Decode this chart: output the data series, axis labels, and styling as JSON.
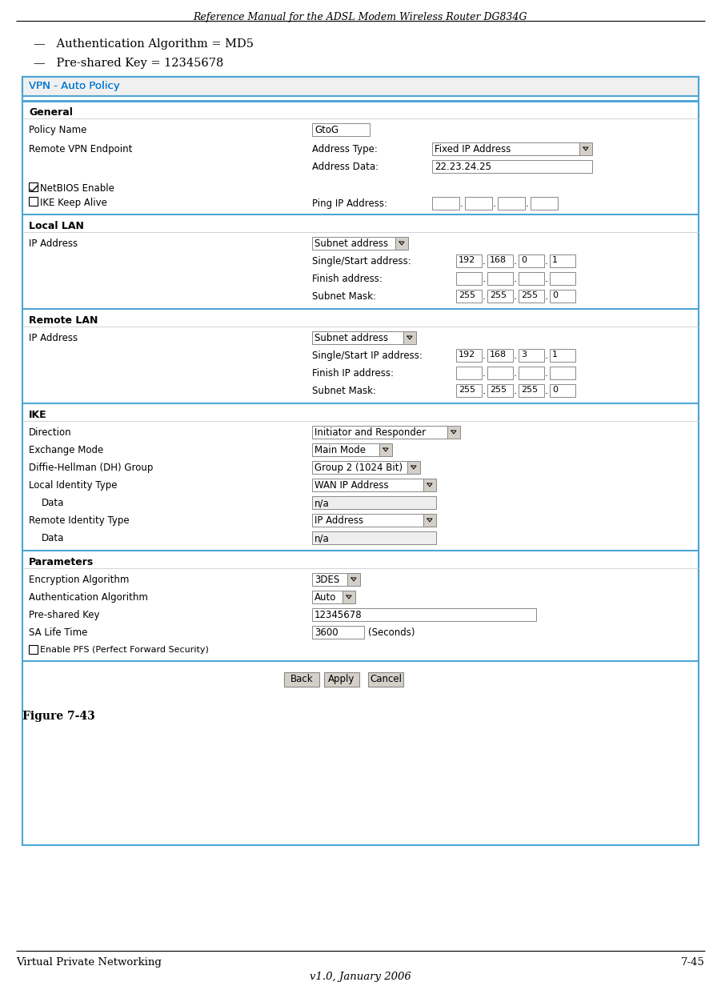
{
  "header_text": "Reference Manual for the ADSL Modem Wireless Router DG834G",
  "bullet1": "—   Authentication Algorithm = MD5",
  "bullet2": "—   Pre-shared Key = 12345678",
  "figure_label": "Figure 7-43",
  "footer_left": "Virtual Private Networking",
  "footer_right": "7-45",
  "footer_center": "v1.0, January 2006",
  "vpn_title": "VPN - Auto Policy",
  "vpn_title_color": "#0078D4",
  "box_border_color": "#4DA6D5",
  "section_line_color": "#4DA6D5",
  "bg_color": "#ffffff",
  "gray_line": "#888888",
  "form_border": "#aaaaaa",
  "title_bg": "#e8f4fb",
  "btn_bg": "#d4d0c8"
}
